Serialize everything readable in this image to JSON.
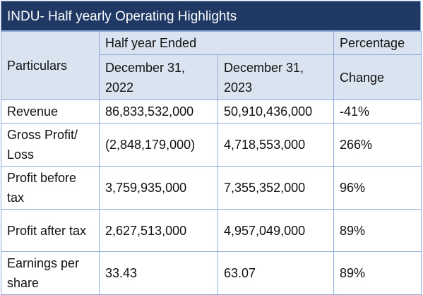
{
  "title": "INDU- Half yearly Operating Highlights",
  "table": {
    "header": {
      "particulars": "Particulars",
      "period": "Half year Ended",
      "percentage": "Percentage",
      "col1": "December 31, 2022",
      "col2": "December 31, 2023",
      "change": "Change"
    },
    "rows": [
      [
        "Revenue",
        "86,833,532,000",
        "50,910,436,000",
        "-41%"
      ],
      [
        "Gross Profit/ Loss",
        "(2,848,179,000)",
        "4,718,553,000",
        "266%"
      ],
      [
        "Profit before tax",
        "3,759,935,000",
        "7,355,352,000",
        "96%"
      ],
      [
        "Profit after tax",
        "2,627,513,000",
        "4,957,049,000",
        "89%"
      ],
      [
        "Earnings per share",
        "33.43",
        "63.07",
        "89%"
      ]
    ]
  }
}
